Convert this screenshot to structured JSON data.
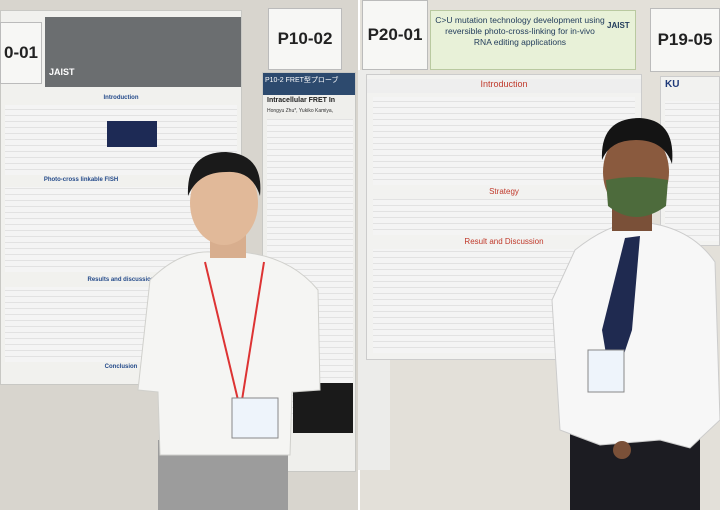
{
  "left_photo": {
    "board_labels": [
      "0-01",
      "P10-02"
    ],
    "poster_left": {
      "sections": [
        "Introduction",
        "Photo-cross linkable FISH",
        "Results and discussion",
        "Conclusion"
      ],
      "logo": "JAIST"
    },
    "poster_right": {
      "header": "P10-2 FRET型プローブ",
      "title": "Intracellular FRET In",
      "authors": "Hongyu Zhu*, Yukiko Kamiya,"
    }
  },
  "right_photo": {
    "board_labels": [
      "P20-01",
      "P19-05"
    ],
    "poster": {
      "title": "C>U mutation technology development using reversible photo-cross-linking for in-vivo RNA editing applications",
      "logo": "JAIST",
      "sections": [
        "Introduction",
        "Strategy",
        "Result and Discussion"
      ]
    },
    "neighbor_poster": {
      "logo": "KU"
    }
  }
}
